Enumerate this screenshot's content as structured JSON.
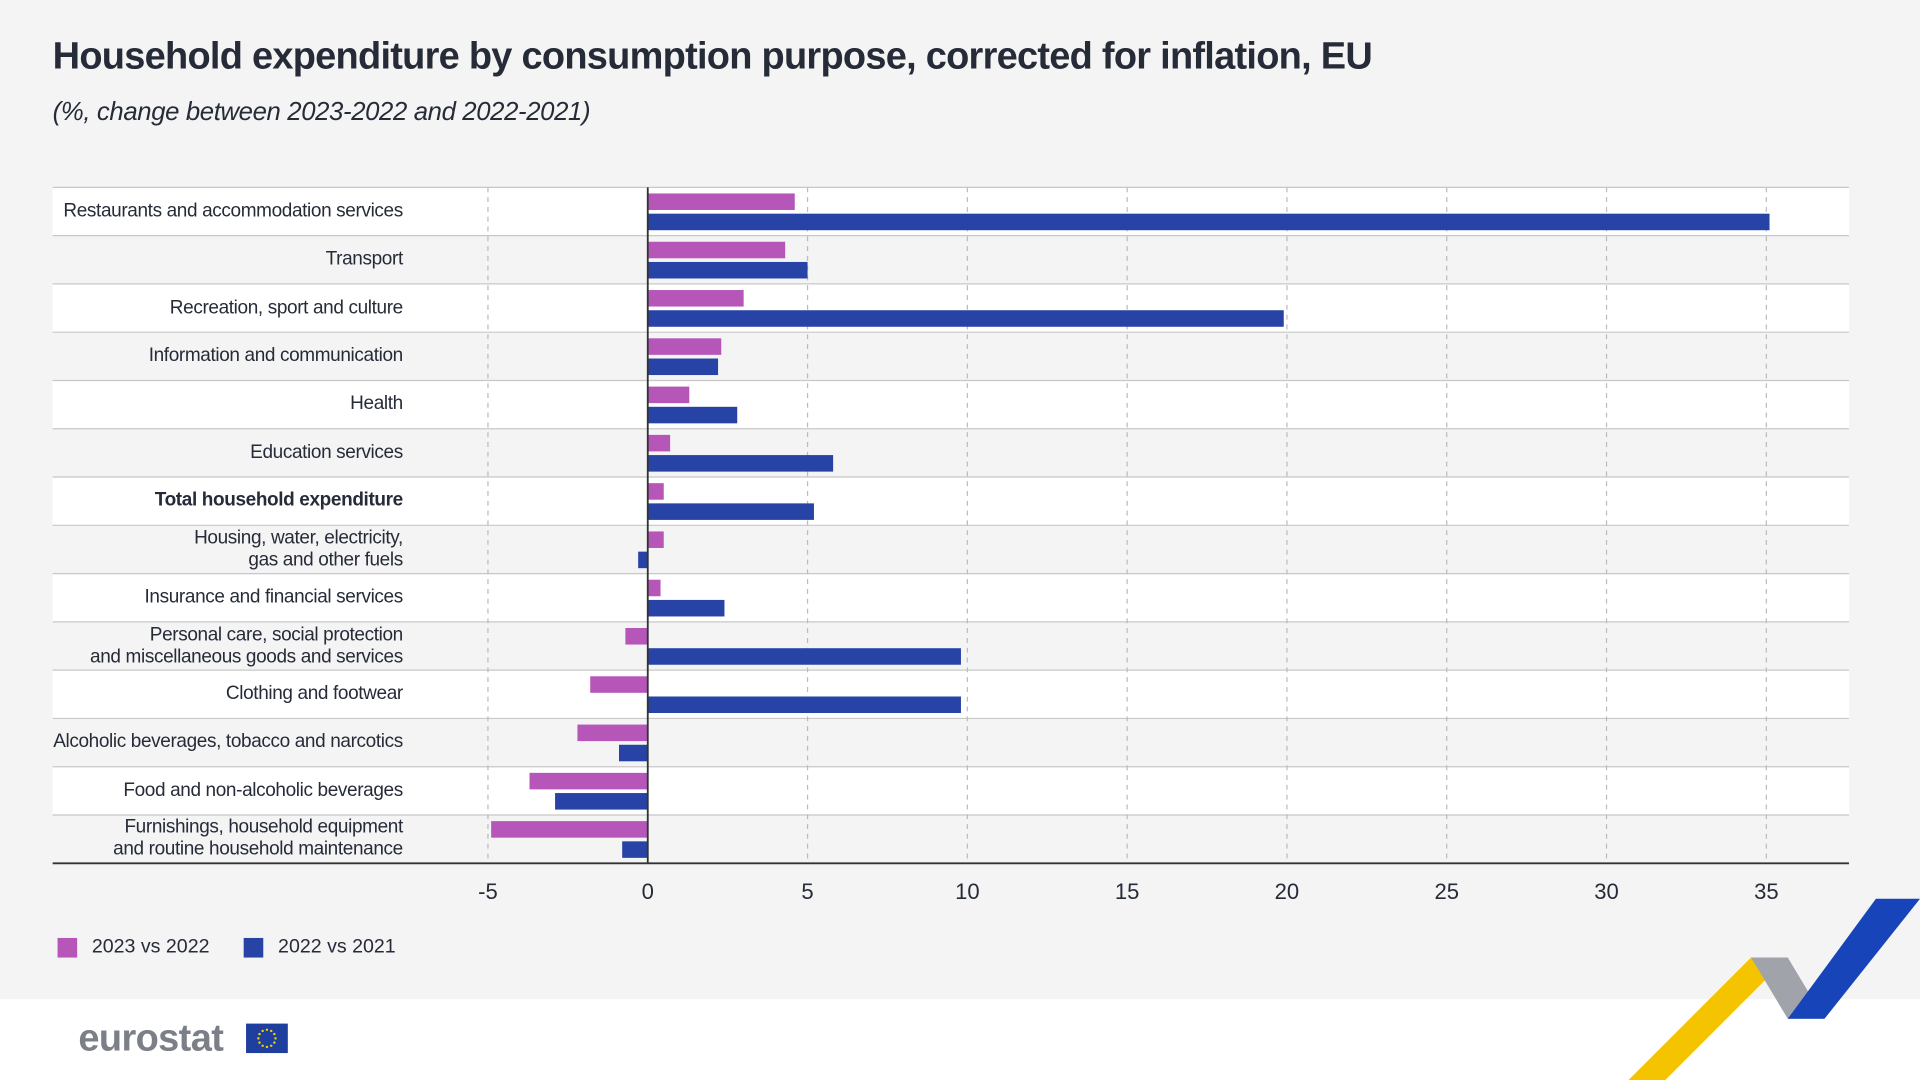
{
  "header": {
    "title": "Household expenditure by consumption purpose, corrected for inflation, EU",
    "subtitle": "(%, change between 2023-2022 and 2022-2021)"
  },
  "chart_data": {
    "type": "bar",
    "orientation": "horizontal",
    "title": "Household expenditure by consumption purpose, corrected for inflation, EU",
    "subtitle": "(%, change between 2023-2022 and 2022-2021)",
    "categories": [
      "Restaurants and accommodation services",
      "Transport",
      "Recreation, sport and culture",
      "Information and communication",
      "Health",
      "Education services",
      "Total household expenditure",
      "Housing, water, electricity,\ngas and other fuels",
      "Insurance and financial services",
      "Personal care, social protection\nand miscellaneous goods and services",
      "Clothing and footwear",
      "Alcoholic beverages, tobacco and narcotics",
      "Food and non-alcoholic beverages",
      "Furnishings, household equipment\nand routine household maintenance"
    ],
    "bold_category": "Total household expenditure",
    "series": [
      {
        "name": "2023 vs 2022",
        "color": "#b656b9",
        "values": [
          4.6,
          4.3,
          3.0,
          2.3,
          1.3,
          0.7,
          0.5,
          0.5,
          0.4,
          -0.7,
          -1.8,
          -2.2,
          -3.7,
          -4.9
        ]
      },
      {
        "name": "2022 vs 2021",
        "color": "#2743a6",
        "values": [
          35.1,
          5.0,
          19.9,
          2.2,
          2.8,
          5.8,
          5.2,
          -0.3,
          2.4,
          9.8,
          9.8,
          -0.9,
          -2.9,
          -0.8
        ]
      }
    ],
    "xlim": [
      -5,
      37
    ],
    "xticks": [
      -5,
      0,
      5,
      10,
      15,
      20,
      25,
      30,
      35
    ],
    "grid": true,
    "legend": "bottom-left"
  },
  "footer": {
    "logo": "eurostat"
  }
}
